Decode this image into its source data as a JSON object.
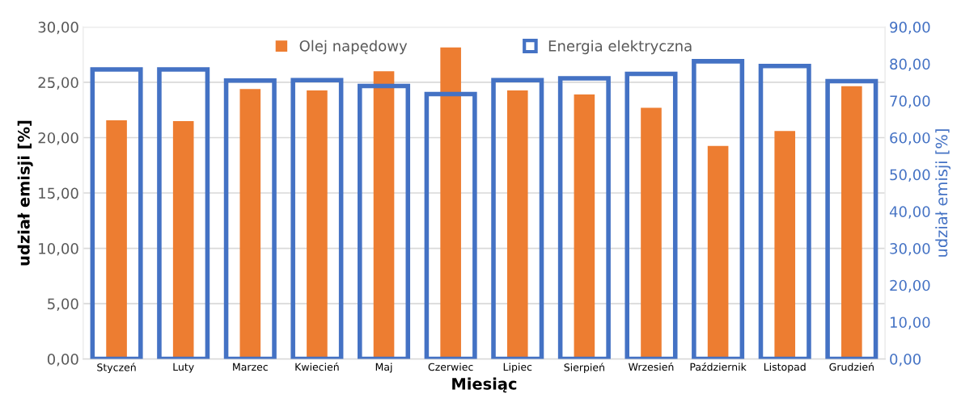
{
  "chart_data": {
    "type": "bar",
    "xlabel": "Miesiąc",
    "ylabel": "udział emisji [%]",
    "y2label": "udział emisji [%]",
    "categories": [
      "Styczeń",
      "Luty",
      "Marzec",
      "Kwiecień",
      "Maj",
      "Czerwiec",
      "Lipiec",
      "Sierpień",
      "Wrzesień",
      "Październik",
      "Listopad",
      "Grudzień"
    ],
    "series": [
      {
        "name": "Olej napędowy",
        "color": "#ed7d31",
        "values": [
          21.56,
          21.5,
          24.4,
          24.27,
          26.0,
          28.15,
          24.26,
          23.9,
          22.7,
          19.25,
          20.6,
          24.65
        ]
      },
      {
        "name": "Energia elektryczna",
        "color": "#4472c4",
        "axis": "y2",
        "values": [
          78.5,
          78.5,
          75.5,
          75.6,
          74.0,
          71.8,
          75.6,
          76.1,
          77.3,
          80.7,
          79.4,
          75.3
        ]
      }
    ],
    "ylim": [
      0,
      30
    ],
    "yticks": [
      {
        "value": 0,
        "label": "0,00"
      },
      {
        "value": 5,
        "label": "5,00"
      },
      {
        "value": 10,
        "label": "10,00"
      },
      {
        "value": 15,
        "label": "15,00"
      },
      {
        "value": 20,
        "label": "20,00"
      },
      {
        "value": 25,
        "label": "25,00"
      },
      {
        "value": 30,
        "label": "30,00"
      }
    ],
    "y2lim": [
      0,
      90
    ],
    "y2ticks": [
      {
        "value": 0,
        "label": "0,00"
      },
      {
        "value": 10,
        "label": "10,00"
      },
      {
        "value": 20,
        "label": "20,00"
      },
      {
        "value": 30,
        "label": "30,00"
      },
      {
        "value": 40,
        "label": "40,00"
      },
      {
        "value": 50,
        "label": "50,00"
      },
      {
        "value": 60,
        "label": "60,00"
      },
      {
        "value": 70,
        "label": "70,00"
      },
      {
        "value": 80,
        "label": "80,00"
      },
      {
        "value": 90,
        "label": "90,00"
      }
    ],
    "grid": "y",
    "legend": "top"
  }
}
